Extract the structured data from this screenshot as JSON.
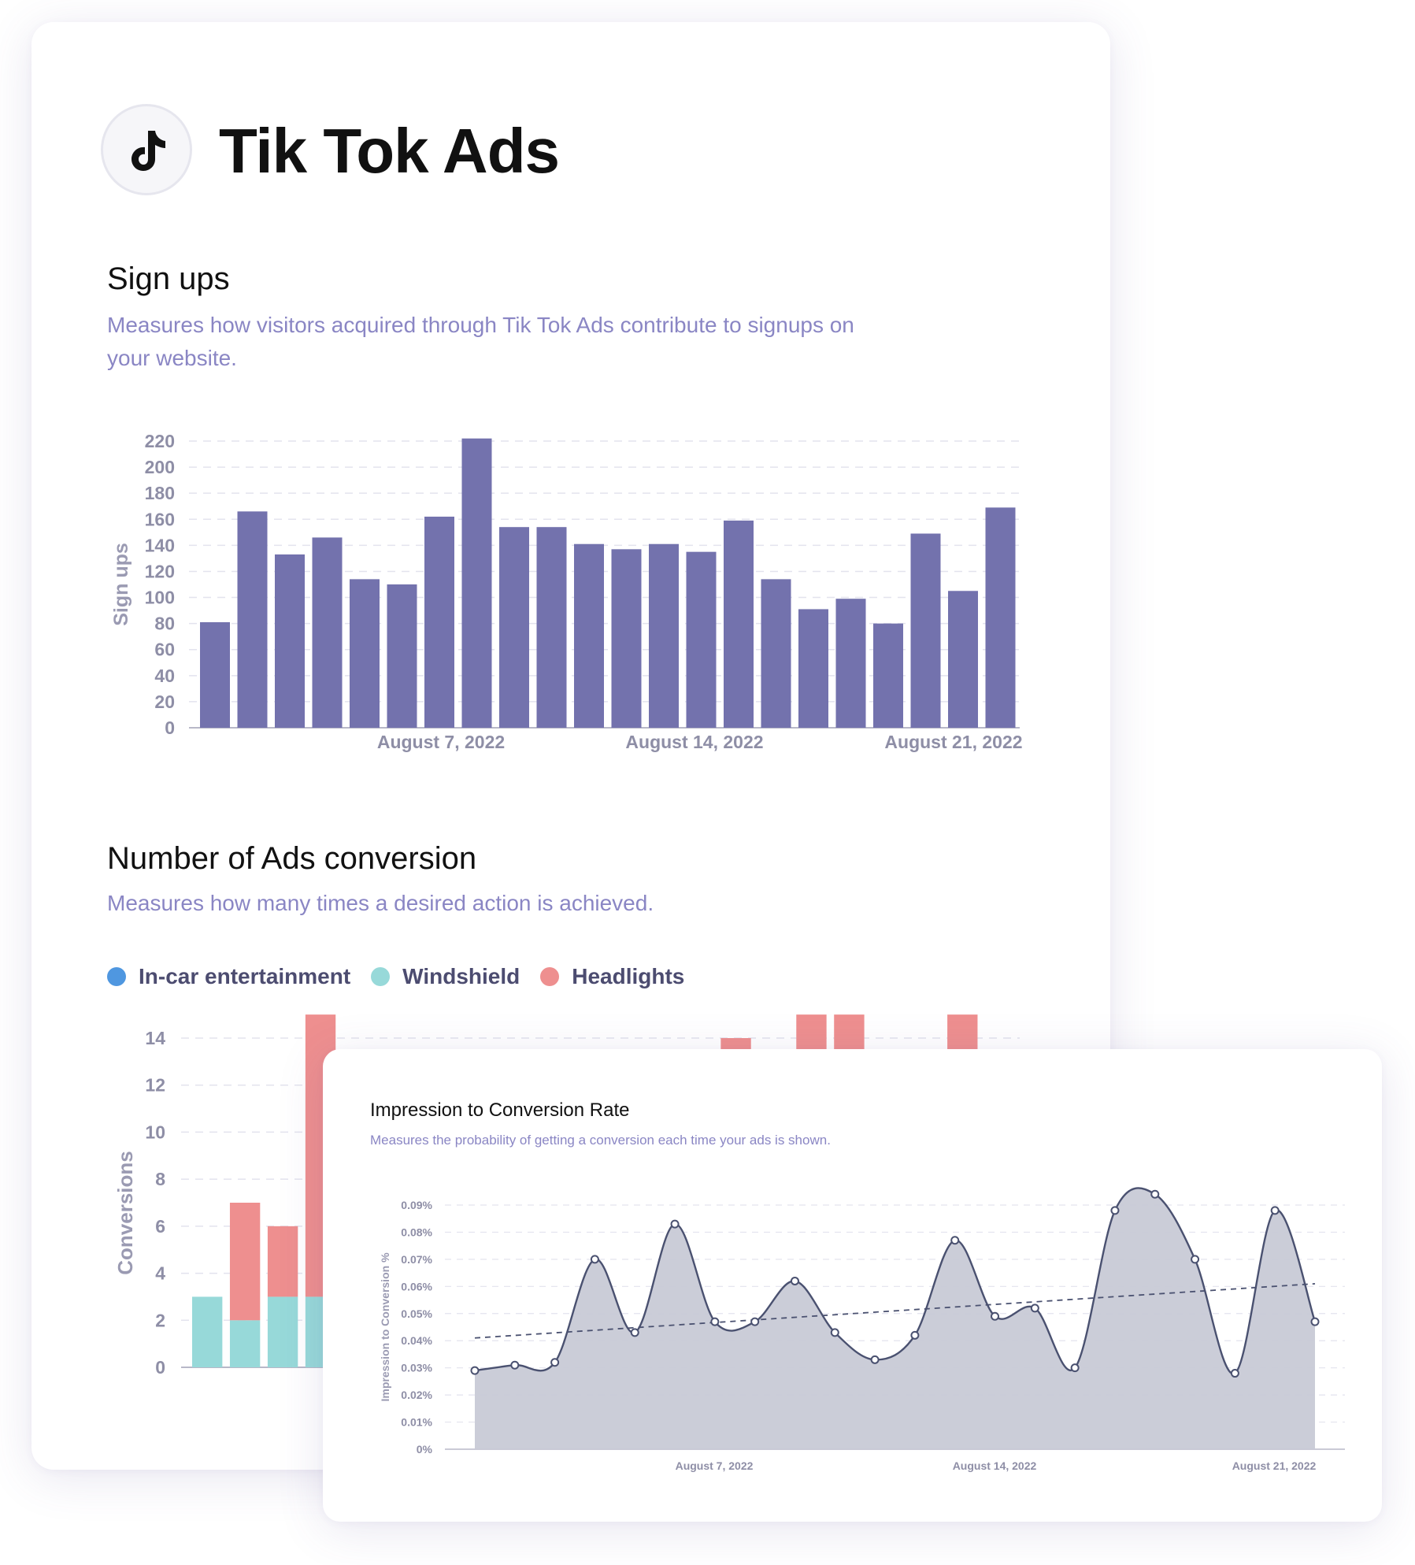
{
  "header": {
    "title": "Tik Tok Ads",
    "logo_icon": "tiktok-icon"
  },
  "signups": {
    "title": "Sign ups",
    "description": "Measures how visitors acquired through Tik Tok Ads contribute to signups on your website."
  },
  "conversions": {
    "title": "Number of Ads conversion",
    "description": "Measures how many times a desired action is achieved.",
    "legend": [
      {
        "label": "In-car entertainment",
        "color": "#4f97e0"
      },
      {
        "label": "Windshield",
        "color": "#97d9d9"
      },
      {
        "label": "Headlights",
        "color": "#ee8f8f"
      }
    ]
  },
  "rate": {
    "title": "Impression to Conversion Rate",
    "description": "Measures the probability of getting a conversion each time your ads is shown."
  },
  "chart_data": [
    {
      "id": "signups",
      "type": "bar",
      "ylabel": "Sign ups",
      "ylim": [
        0,
        220
      ],
      "yticks": [
        0,
        20,
        40,
        60,
        80,
        100,
        120,
        140,
        160,
        180,
        200,
        220
      ],
      "x_tick_labels": [
        "August 7, 2022",
        "August 14, 2022",
        "August 21, 2022"
      ],
      "color": "#7372ad",
      "grid": true,
      "values": [
        81,
        166,
        133,
        146,
        114,
        110,
        162,
        222,
        154,
        154,
        141,
        137,
        141,
        135,
        159,
        114,
        91,
        99,
        80,
        149,
        105,
        169
      ]
    },
    {
      "id": "conversions",
      "type": "bar",
      "stacked": true,
      "ylabel": "Conversions",
      "ylim": [
        0,
        14
      ],
      "yticks": [
        0,
        2,
        4,
        6,
        8,
        10,
        12,
        14
      ],
      "grid": true,
      "series": [
        {
          "name": "Windshield",
          "color": "#97d9d9",
          "values": [
            3,
            2,
            3,
            3,
            3,
            3,
            3,
            3,
            3,
            3,
            3,
            3,
            3,
            3,
            3,
            3,
            3,
            3,
            3,
            3,
            3,
            3
          ]
        },
        {
          "name": "Headlights",
          "color": "#ee8f8f",
          "values": [
            0,
            5,
            3,
            12,
            0,
            0,
            0,
            0,
            0,
            0,
            0,
            0,
            0,
            0,
            11,
            0,
            12,
            12,
            0,
            0,
            12,
            0
          ]
        }
      ]
    },
    {
      "id": "rate",
      "type": "area",
      "ylabel": "Impression to Conversion %",
      "ylim": [
        0,
        0.09
      ],
      "yticks": [
        "0%",
        "0.01%",
        "0.02%",
        "0.03%",
        "0.04%",
        "0.05%",
        "0.06%",
        "0.07%",
        "0.08%",
        "0.09%"
      ],
      "x_tick_labels": [
        "August 7, 2022",
        "August 14, 2022",
        "August 21, 2022"
      ],
      "color": "#4a5170",
      "fill": "#c8cad6",
      "grid": true,
      "values": [
        0.029,
        0.031,
        0.032,
        0.07,
        0.043,
        0.083,
        0.047,
        0.047,
        0.062,
        0.043,
        0.033,
        0.042,
        0.077,
        0.049,
        0.052,
        0.03,
        0.088,
        0.094,
        0.07,
        0.028,
        0.088,
        0.047
      ],
      "trendline": {
        "start": 0.041,
        "end": 0.061,
        "style": "dashed"
      }
    }
  ]
}
